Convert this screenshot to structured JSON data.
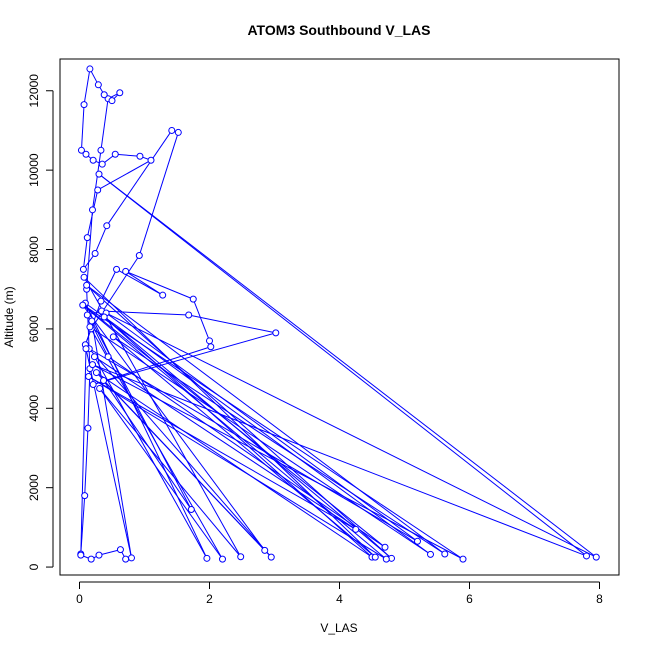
{
  "chart_data": {
    "type": "line",
    "title": "ATOM3 Southbound V_LAS",
    "xlabel": "V_LAS",
    "ylabel": "Altitude (m)",
    "xlim": [
      -0.3,
      8.3
    ],
    "ylim": [
      -200,
      12800
    ],
    "x_ticks": [
      0,
      2,
      4,
      6,
      8
    ],
    "y_ticks": [
      0,
      2000,
      4000,
      6000,
      8000,
      10000,
      12000
    ],
    "grid": false,
    "legend": "none",
    "series_color": "#0000ff",
    "marker": "open-circle",
    "series": [
      {
        "x": [
          0.02,
          0.08,
          0.13,
          0.16,
          0.11,
          0.2,
          0.33,
          0.44,
          0.62,
          0.5,
          0.38,
          0.29,
          0.16,
          0.07,
          0.03,
          0.1,
          0.21,
          0.35,
          0.55,
          0.93,
          1.1,
          0.28,
          0.12,
          0.06,
          0.24,
          0.42,
          1.42,
          1.52,
          0.92,
          0.18,
          0.09,
          0.33,
          0.57,
          1.28,
          0.71,
          1.75,
          2.0,
          2.02,
          0.21,
          3.02,
          1.68,
          0.34,
          0.12,
          0.44,
          4.7,
          0.06,
          5.9,
          0.2,
          7.8,
          0.3,
          7.95,
          0.41,
          5.2,
          0.15,
          2.95,
          0.26,
          4.5,
          0.38,
          4.8,
          0.11,
          5.62,
          0.52,
          4.55,
          0.07,
          2.48,
          0.31,
          2.2,
          0.16,
          5.4,
          0.09,
          1.96,
          0.23,
          4.25,
          0.14,
          4.72,
          0.05,
          2.85,
          0.37,
          1.72,
          0.19,
          0.8,
          0.1,
          0.02,
          0.18,
          0.3,
          0.63,
          0.71
        ],
        "y": [
          330,
          1800,
          3500,
          5000,
          7000,
          9000,
          10500,
          11800,
          11950,
          11750,
          11900,
          12150,
          12550,
          11650,
          10500,
          10400,
          10250,
          10150,
          10400,
          10350,
          10250,
          9500,
          8300,
          7500,
          7900,
          8600,
          11000,
          10950,
          7850,
          6000,
          5600,
          6700,
          7500,
          6850,
          7450,
          6750,
          5700,
          5550,
          4600,
          5900,
          6350,
          6450,
          6350,
          5300,
          500,
          6600,
          200,
          5100,
          280,
          9900,
          250,
          6400,
          650,
          5500,
          250,
          4900,
          250,
          6300,
          220,
          7100,
          330,
          5800,
          250,
          7300,
          260,
          4500,
          200,
          6050,
          320,
          6650,
          220,
          5300,
          950,
          4800,
          200,
          6600,
          420,
          4700,
          1450,
          6200,
          230,
          5500,
          300,
          200,
          300,
          440,
          200
        ]
      }
    ]
  }
}
